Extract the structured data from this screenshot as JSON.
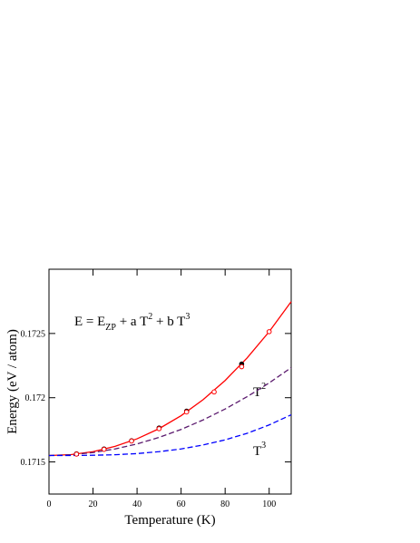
{
  "chart_data": {
    "type": "line",
    "xlabel": "Temperature  (K)",
    "ylabel": "Energy   (eV / atom)",
    "annotations": [
      {
        "parts": [
          "E  =  E",
          "ZP",
          " + a T",
          "2",
          " + b T",
          "3"
        ]
      },
      {
        "parts": [
          "T",
          "2"
        ]
      },
      {
        "parts": [
          "T",
          "3"
        ]
      }
    ],
    "xlim": [
      0,
      110
    ],
    "xticks": [
      0,
      20,
      40,
      60,
      80,
      100
    ],
    "ylim": [
      0.17125,
      0.173
    ],
    "yticks": [
      0.1715,
      0.172,
      0.1725
    ],
    "grid": false,
    "series": [
      {
        "color": "#ff0000",
        "style": "solid",
        "x": [
          0,
          10,
          20,
          30,
          40,
          50,
          60,
          70,
          80,
          90,
          100,
          110
        ],
        "values": [
          0.17155,
          0.171557,
          0.17158,
          0.171621,
          0.17168,
          0.171759,
          0.17186,
          0.171985,
          0.172134,
          0.17231,
          0.172514,
          0.172748
        ]
      },
      {
        "color": "#5b1a6e",
        "style": "dashed",
        "x": [
          0,
          10,
          20,
          30,
          40,
          50,
          60,
          70,
          80,
          90,
          100,
          110
        ],
        "values": [
          0.17155,
          0.171556,
          0.171573,
          0.171601,
          0.17164,
          0.171691,
          0.171753,
          0.171827,
          0.171912,
          0.172008,
          0.172115,
          0.172234
        ]
      },
      {
        "color": "#0000ff",
        "style": "dashed",
        "x": [
          0,
          10,
          20,
          30,
          40,
          50,
          60,
          70,
          80,
          90,
          100,
          110
        ],
        "values": [
          0.17155,
          0.17155,
          0.171552,
          0.171556,
          0.171565,
          0.17158,
          0.171601,
          0.171632,
          0.171672,
          0.171723,
          0.171788,
          0.171867
        ]
      },
      {
        "color": "#000000",
        "style": "filled-circle",
        "x": [
          12.5,
          25,
          37.5,
          50,
          62.5,
          87.5
        ],
        "values": [
          0.171563,
          0.171601,
          0.171665,
          0.171764,
          0.171895,
          0.172262
        ]
      },
      {
        "color": "#ff0000",
        "style": "open-circle",
        "x": [
          12.5,
          25,
          37.5,
          50,
          62.5,
          75,
          87.5,
          100
        ],
        "values": [
          0.171561,
          0.171598,
          0.171663,
          0.171759,
          0.171889,
          0.172045,
          0.172241,
          0.172514
        ]
      }
    ]
  }
}
